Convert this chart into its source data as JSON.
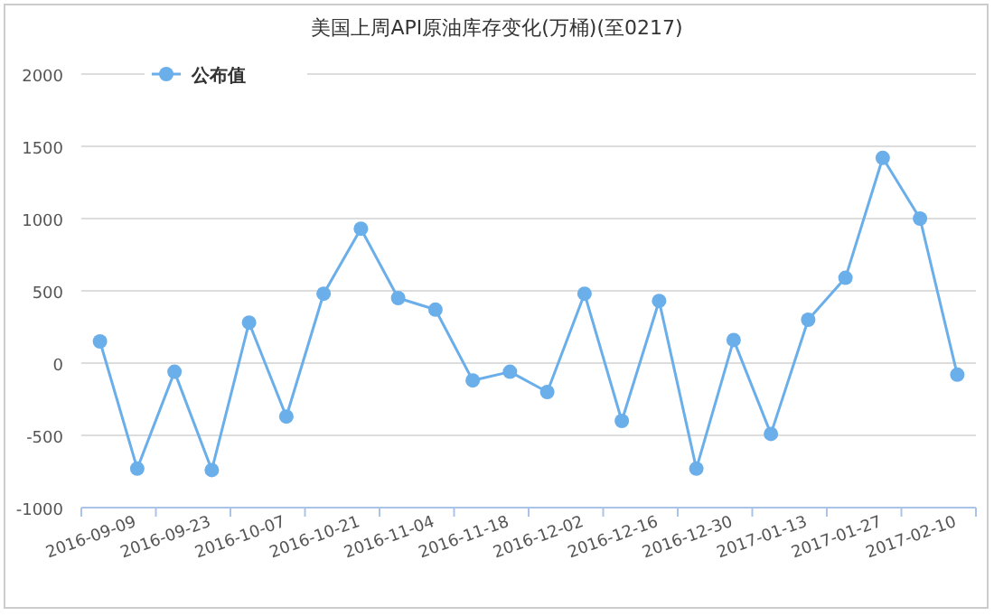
{
  "chart_data": {
    "type": "line",
    "title": "美国上周API原油库存变化(万桶)(至0217)",
    "categories": [
      null,
      "2016-09-09",
      null,
      "2016-09-23",
      null,
      "2016-10-07",
      null,
      "2016-10-21",
      null,
      "2016-11-04",
      null,
      "2016-11-18",
      null,
      "2016-12-02",
      null,
      "2016-12-16",
      null,
      "2016-12-30",
      null,
      "2017-01-13",
      null,
      "2017-01-27",
      null,
      "2017-02-10"
    ],
    "series": [
      {
        "name": "公布值",
        "color": "#6aaeea",
        "values": [
          150,
          -730,
          -60,
          -740,
          280,
          -370,
          480,
          930,
          450,
          370,
          -120,
          -60,
          -200,
          480,
          -400,
          430,
          -730,
          160,
          -490,
          300,
          590,
          1420,
          1000,
          -80
        ]
      }
    ],
    "ylim": [
      -1000,
      2000
    ],
    "yticks": [
      -1000,
      -500,
      0,
      500,
      1000,
      1500,
      2000
    ],
    "grid": "y",
    "legend": "top left",
    "marker": "circle",
    "line_style": "solid"
  }
}
